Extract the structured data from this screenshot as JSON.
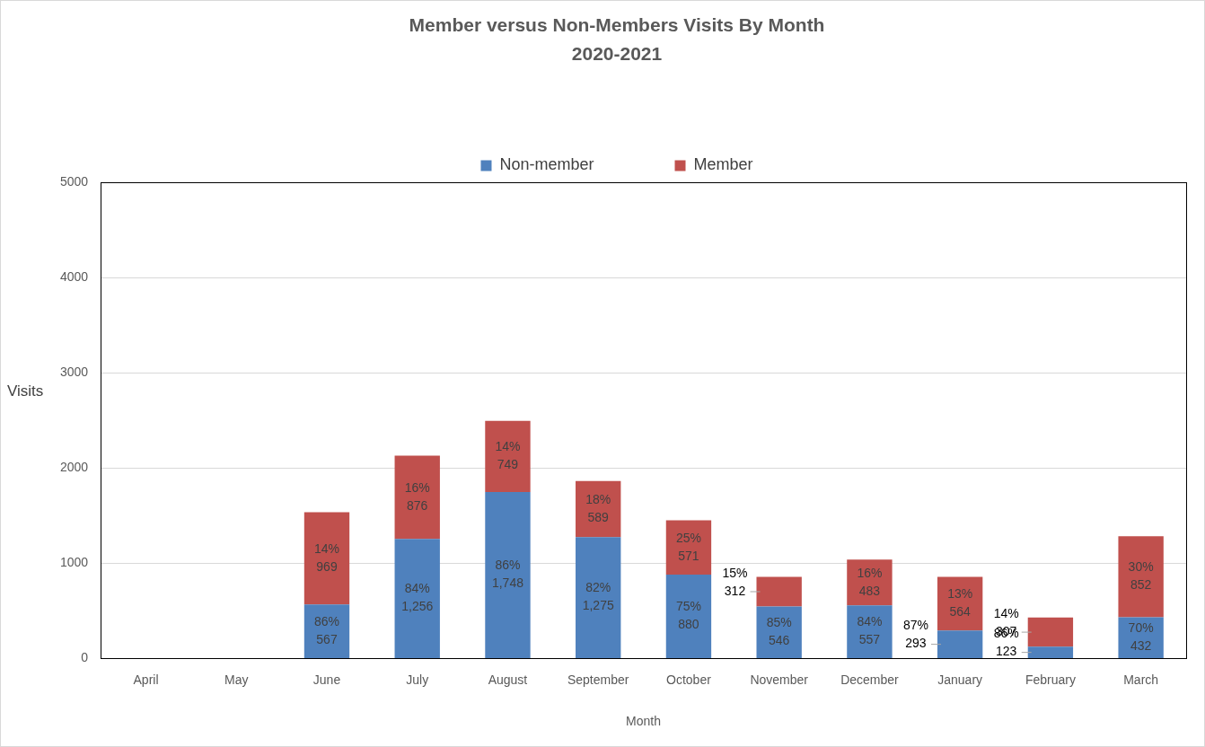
{
  "chart_data": {
    "type": "bar",
    "title": "Member versus Non-Members Visits By Month",
    "subtitle": "2020-2021",
    "x_label": "Month",
    "y_label": "Visits",
    "categories": [
      "April",
      "May",
      "June",
      "July",
      "August",
      "September",
      "October",
      "November",
      "December",
      "January",
      "February",
      "March"
    ],
    "series": [
      {
        "name": "Non-member",
        "color": "#4f81bd",
        "values": [
          null,
          null,
          567,
          1256,
          1748,
          1275,
          880,
          546,
          557,
          293,
          123,
          432
        ],
        "value_labels": [
          null,
          null,
          "567",
          "1,256",
          "1,748",
          "1,275",
          "880",
          "546",
          "557",
          "293",
          "123",
          "432"
        ],
        "percent_labels": [
          null,
          null,
          "86%",
          "84%",
          "86%",
          "82%",
          "75%",
          "85%",
          "84%",
          "87%",
          "86%",
          "70%"
        ]
      },
      {
        "name": "Member",
        "color": "#c0504d",
        "values": [
          null,
          null,
          969,
          876,
          749,
          589,
          571,
          312,
          483,
          564,
          307,
          852
        ],
        "value_labels": [
          null,
          null,
          "969",
          "876",
          "749",
          "589",
          "571",
          "312",
          "483",
          "564",
          "307",
          "852"
        ],
        "percent_labels": [
          null,
          null,
          "14%",
          "16%",
          "14%",
          "18%",
          "25%",
          "15%",
          "16%",
          "13%",
          "14%",
          "30%"
        ]
      }
    ],
    "ylim": [
      0,
      5000
    ],
    "yticks": [
      0,
      1000,
      2000,
      3000,
      4000,
      5000
    ],
    "stacked": true,
    "grid": true,
    "legend": "top",
    "data_labels": true
  }
}
